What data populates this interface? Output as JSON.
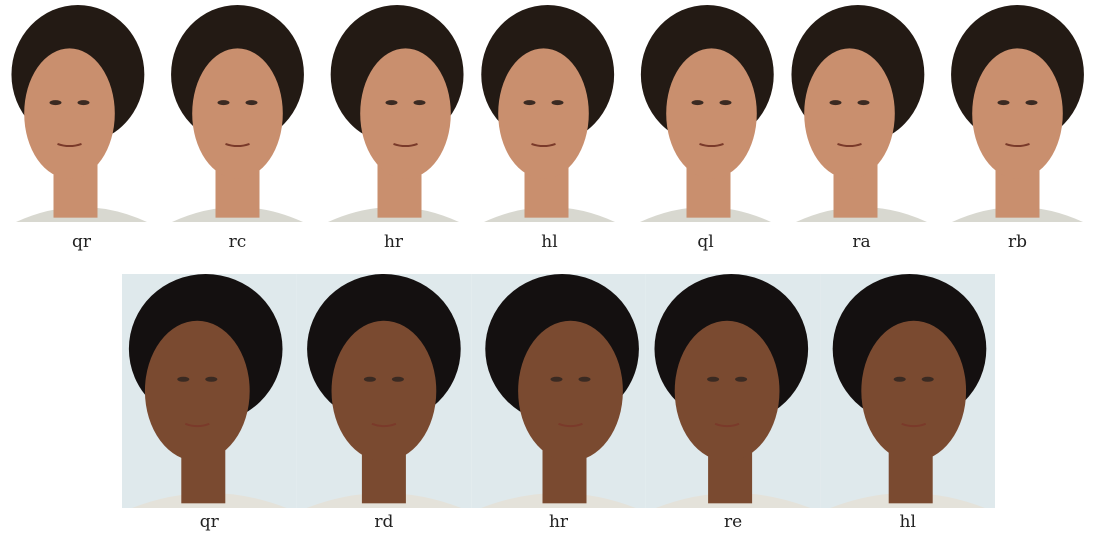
{
  "rows": [
    [
      "qr",
      "rc",
      "hr",
      "hl",
      "ql",
      "ra",
      "rb"
    ],
    [
      "qr",
      "rd",
      "hr",
      "re",
      "hl"
    ]
  ]
}
